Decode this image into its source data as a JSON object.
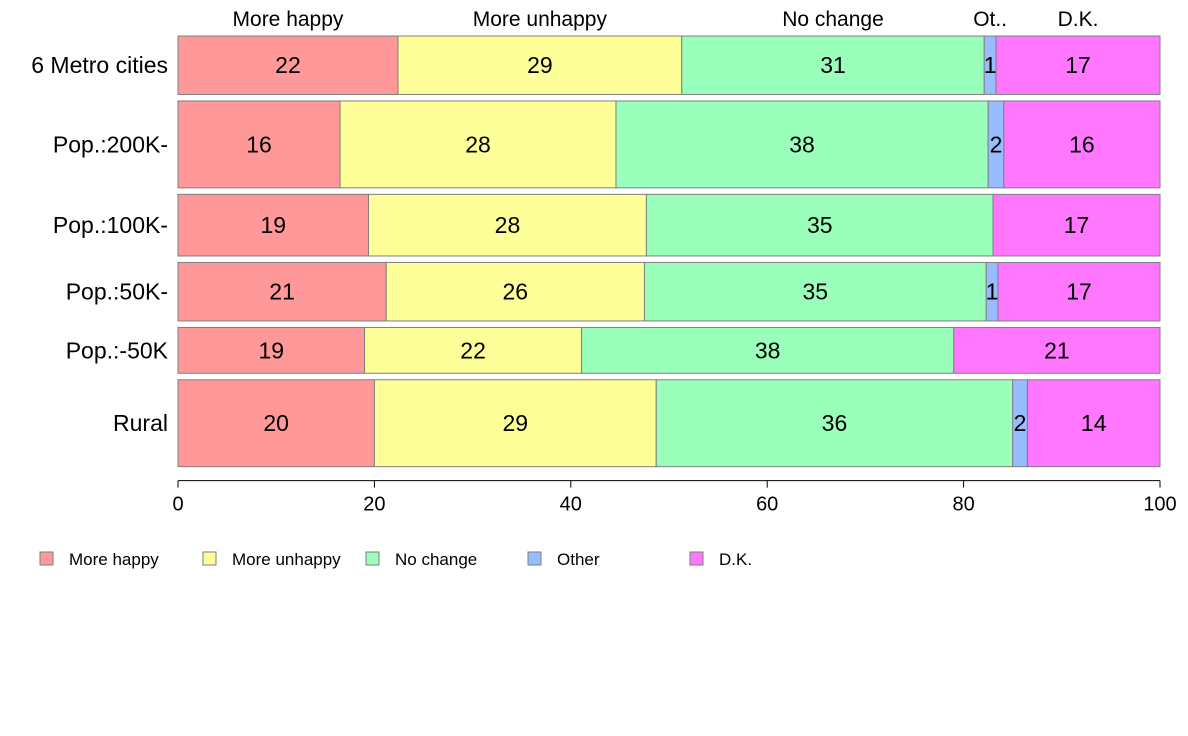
{
  "chart_data": {
    "type": "bar",
    "orientation": "horizontal",
    "stacked": true,
    "column_headers": [
      "More happy",
      "More unhappy",
      "No change",
      "Ot..",
      "D.K."
    ],
    "categories": [
      "6 Metro cities",
      "Pop.:200K-",
      "Pop.:100K-",
      "Pop.:50K-",
      "Pop.:-50K",
      "Rural"
    ],
    "bar_widths": [
      0.74,
      1.1,
      0.78,
      0.74,
      0.58,
      1.1
    ],
    "series": [
      {
        "name": "More happy",
        "color": "#FF9999",
        "values": [
          22.4,
          16.5,
          19.4,
          21.2,
          19.0,
          20.0
        ],
        "labels": [
          "22",
          "16",
          "19",
          "21",
          "19",
          "20"
        ]
      },
      {
        "name": "More unhappy",
        "color": "#FFFF99",
        "values": [
          28.9,
          28.1,
          28.3,
          26.3,
          22.1,
          28.7
        ],
        "labels": [
          "29",
          "28",
          "28",
          "26",
          "22",
          "29"
        ]
      },
      {
        "name": "No change",
        "color": "#99FFBB",
        "values": [
          30.8,
          37.9,
          35.3,
          34.8,
          37.9,
          36.3
        ],
        "labels": [
          "31",
          "38",
          "35",
          "35",
          "38",
          "36"
        ]
      },
      {
        "name": "Other",
        "color": "#99BBFF",
        "values": [
          1.2,
          1.6,
          0.0,
          1.2,
          0.0,
          1.5
        ],
        "labels": [
          "1",
          "2",
          "",
          "1",
          "",
          "2"
        ]
      },
      {
        "name": "D.K.",
        "color": "#FF77FF",
        "values": [
          16.7,
          15.9,
          17.0,
          16.5,
          21.0,
          13.5
        ],
        "labels": [
          "17",
          "16",
          "17",
          "17",
          "21",
          "14"
        ]
      }
    ],
    "xlim": [
      0,
      100
    ],
    "xticks": [
      "0",
      "20",
      "40",
      "60",
      "80",
      "100"
    ],
    "grid": false,
    "legend": {
      "position": "bottom-left",
      "items": [
        "More happy",
        "More unhappy",
        "No change",
        "Other",
        "D.K."
      ]
    }
  }
}
